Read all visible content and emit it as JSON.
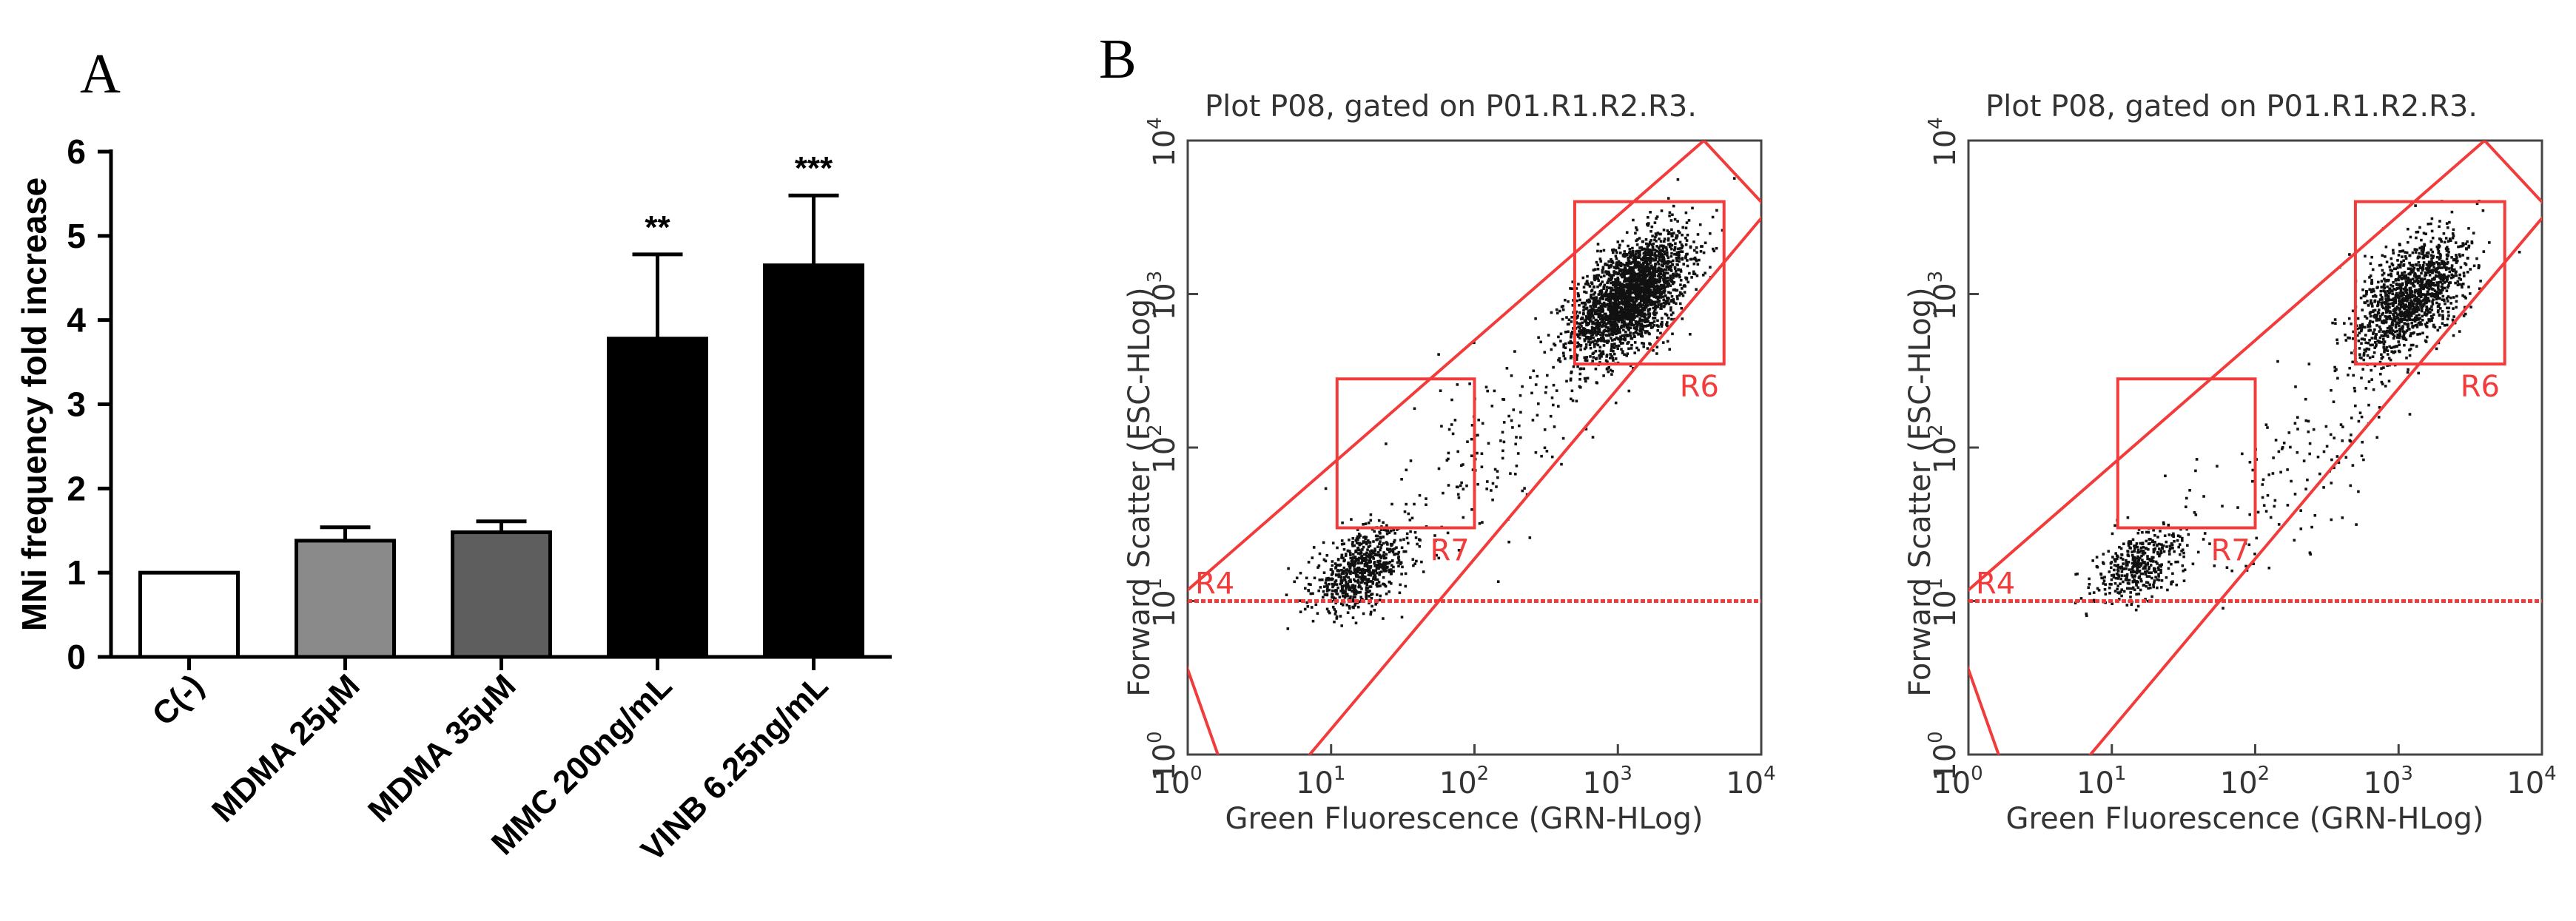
{
  "panels": {
    "A": "A",
    "B": "B"
  },
  "colors": {
    "gate": "#f23b3b",
    "dots": "#111111",
    "axis": "#000000",
    "text_grey": "#333333"
  },
  "chart_data": [
    {
      "type": "bar",
      "panel": "A",
      "categories": [
        "C(-)",
        "MDMA 25μM",
        "MDMA 35μM",
        "MMC 200ng/mL",
        "VINB 6.25ng/mL"
      ],
      "values": [
        1.0,
        1.38,
        1.48,
        3.78,
        4.65
      ],
      "errors": [
        0,
        0.16,
        0.13,
        1.0,
        0.83
      ],
      "significance": [
        "",
        "",
        "",
        "**",
        "***"
      ],
      "bar_colors": [
        "#ffffff",
        "#8a8a8a",
        "#5e5e5e",
        "#000000",
        "#000000"
      ],
      "title": "",
      "xlabel": "",
      "ylabel": "MNi frequency fold increase",
      "ylim": [
        0,
        6
      ],
      "yticks": [
        "0",
        "1",
        "2",
        "3",
        "4",
        "5",
        "6"
      ]
    },
    {
      "type": "scatter",
      "panel": "B-left",
      "title": "Plot P08, gated on P01.R1.R2.R3.",
      "xlabel": "Green Fluorescence (GRN-HLog)",
      "ylabel": "Forward Scatter (FSC-HLog)",
      "scale": "log10",
      "xlim": [
        1,
        10000
      ],
      "ylim": [
        1,
        10000
      ],
      "tick_base": "10",
      "tick_exponents": [
        "0",
        "1",
        "2",
        "3",
        "4"
      ],
      "gates": [
        {
          "label": "R4",
          "type": "threshold",
          "y": 10
        },
        {
          "label": "R6",
          "type": "rectangle",
          "x": [
            500,
            5500
          ],
          "y": [
            350,
            4000
          ]
        },
        {
          "label": "R7",
          "type": "rectangle",
          "x": [
            11,
            100
          ],
          "y": [
            30,
            280
          ]
        }
      ],
      "clusters": [
        {
          "name": "main",
          "center": [
            1200,
            1000
          ],
          "n": 2400
        },
        {
          "name": "low",
          "center": [
            16,
            16
          ],
          "n": 700
        },
        {
          "name": "mid",
          "center": [
            120,
            100
          ],
          "n": 160
        }
      ]
    },
    {
      "type": "scatter",
      "panel": "B-right",
      "title": "Plot P08, gated on P01.R1.R2.R3.",
      "xlabel": "Green Fluorescence (GRN-HLog)",
      "ylabel": "Forward Scatter (FSC-HLog)",
      "scale": "log10",
      "xlim": [
        1,
        10000
      ],
      "ylim": [
        1,
        10000
      ],
      "tick_base": "10",
      "tick_exponents": [
        "0",
        "1",
        "2",
        "3",
        "4"
      ],
      "gates": [
        {
          "label": "R4",
          "type": "threshold",
          "y": 10
        },
        {
          "label": "R6",
          "type": "rectangle",
          "x": [
            500,
            5500
          ],
          "y": [
            350,
            4000
          ]
        },
        {
          "label": "R7",
          "type": "rectangle",
          "x": [
            11,
            100
          ],
          "y": [
            30,
            280
          ]
        }
      ],
      "clusters": [
        {
          "name": "main",
          "center": [
            1200,
            1000
          ],
          "n": 1300
        },
        {
          "name": "low",
          "center": [
            16,
            18
          ],
          "n": 420
        },
        {
          "name": "mid",
          "center": [
            200,
            80
          ],
          "n": 140
        }
      ]
    }
  ]
}
